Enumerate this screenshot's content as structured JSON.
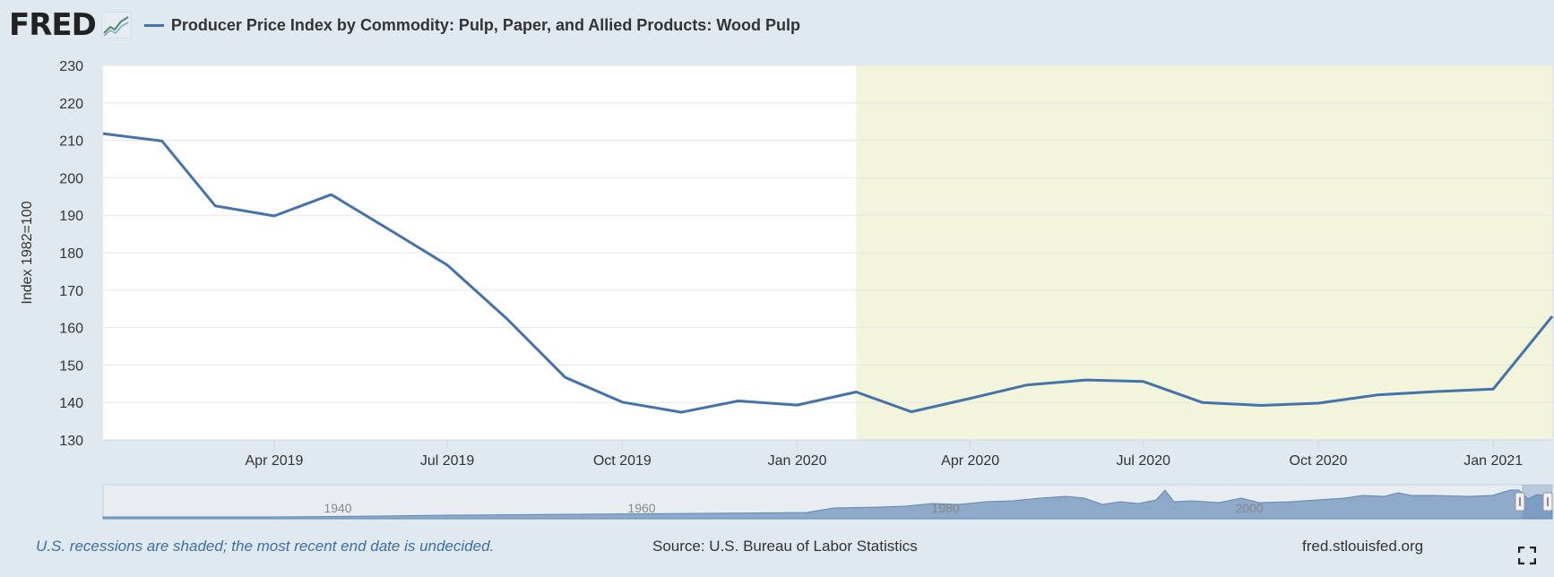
{
  "header": {
    "logo": "FRED",
    "series_title": "Producer Price Index by Commodity: Pulp, Paper, and Allied Products: Wood Pulp",
    "series_color": "#4572a7"
  },
  "chart_data": {
    "type": "line",
    "title": "Producer Price Index by Commodity: Pulp, Paper, and Allied Products: Wood Pulp",
    "ylabel": "Index 1982=100",
    "xlabel": "",
    "ylim": [
      130,
      230
    ],
    "yticks": [
      130,
      140,
      150,
      160,
      170,
      180,
      190,
      200,
      210,
      220,
      230
    ],
    "xlim": [
      "2019-01-01",
      "2021-02-01"
    ],
    "xticks": [
      {
        "date": "2019-04-01",
        "label": "Apr 2019"
      },
      {
        "date": "2019-07-01",
        "label": "Jul 2019"
      },
      {
        "date": "2019-10-01",
        "label": "Oct 2019"
      },
      {
        "date": "2020-01-01",
        "label": "Jan 2020"
      },
      {
        "date": "2020-04-01",
        "label": "Apr 2020"
      },
      {
        "date": "2020-07-01",
        "label": "Jul 2020"
      },
      {
        "date": "2020-10-01",
        "label": "Oct 2020"
      },
      {
        "date": "2021-01-01",
        "label": "Jan 2021"
      }
    ],
    "grid": true,
    "recession": {
      "start": "2020-02-01",
      "end": "2021-02-01",
      "color": "#f3f4dc"
    },
    "series": [
      {
        "name": "Producer Price Index by Commodity: Pulp, Paper, and Allied Products: Wood Pulp",
        "color": "#4572a7",
        "x": [
          "2019-01-01",
          "2019-02-01",
          "2019-03-01",
          "2019-04-01",
          "2019-05-01",
          "2019-06-01",
          "2019-07-01",
          "2019-08-01",
          "2019-09-01",
          "2019-10-01",
          "2019-11-01",
          "2019-12-01",
          "2020-01-01",
          "2020-02-01",
          "2020-03-01",
          "2020-04-01",
          "2020-05-01",
          "2020-06-01",
          "2020-07-01",
          "2020-08-01",
          "2020-09-01",
          "2020-10-01",
          "2020-11-01",
          "2020-12-01",
          "2021-01-01",
          "2021-02-01"
        ],
        "values": [
          211.8,
          209.8,
          192.5,
          189.8,
          195.5,
          186.0,
          176.7,
          162.5,
          146.7,
          140.1,
          137.4,
          140.4,
          139.3,
          142.8,
          137.5,
          141.1,
          144.7,
          146.0,
          145.6,
          140.0,
          139.2,
          139.8,
          142.0,
          142.9,
          143.6,
          163.0
        ]
      }
    ],
    "navigator": {
      "labels": [
        "1940",
        "1960",
        "1980",
        "2000"
      ]
    }
  },
  "footer": {
    "recession_note": "U.S. recessions are shaded; the most recent end date is undecided.",
    "source": "Source: U.S. Bureau of Labor Statistics",
    "site": "fred.stlouisfed.org"
  }
}
